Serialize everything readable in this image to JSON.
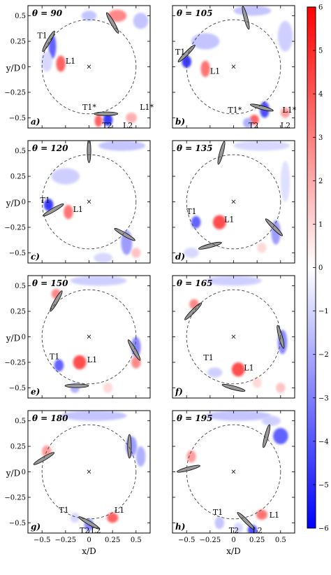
{
  "chart_data": {
    "type": "heatmap",
    "xlabel": "x/D",
    "ylabel": "y/D",
    "xlim": [
      -0.65,
      0.65
    ],
    "ylim": [
      -0.6,
      0.6
    ],
    "x_ticks": [
      "−0.5",
      "−0.25",
      "0",
      "0.25",
      "0.5"
    ],
    "y_ticks": [
      "0.5",
      "0.25",
      "0",
      "−0.25",
      "−0.5"
    ],
    "x_tick_values": [
      -0.5,
      -0.25,
      0,
      0.25,
      0.5
    ],
    "y_tick_values": [
      0.5,
      0.25,
      0,
      -0.25,
      -0.5
    ],
    "colorbar": {
      "min": -6,
      "max": 6,
      "ticks": [
        "6",
        "5",
        "4",
        "3",
        "2",
        "1",
        "0",
        "−1",
        "−2",
        "−3",
        "−4",
        "−5",
        "−6"
      ],
      "tick_values": [
        6,
        5,
        4,
        3,
        2,
        1,
        0,
        -1,
        -2,
        -3,
        -4,
        -5,
        -6
      ],
      "colors": {
        "low": "#0000ff",
        "mid": "#ffffff",
        "high": "#ff0000"
      }
    },
    "circle_radius": 0.5,
    "panels": [
      {
        "id": "a",
        "letter": "a)",
        "theta": "θ = 90",
        "blades": [
          {
            "x": 0.18,
            "y": -0.46,
            "angle": 0
          },
          {
            "x": -0.43,
            "y": 0.25,
            "angle": 120
          },
          {
            "x": 0.25,
            "y": 0.43,
            "angle": 240
          }
        ],
        "blobs": [
          {
            "x": -0.3,
            "y": 0.03,
            "rx": 0.05,
            "ry": 0.08,
            "v": 4
          },
          {
            "x": -0.39,
            "y": 0.2,
            "rx": 0.04,
            "ry": 0.12,
            "v": -4
          },
          {
            "x": 0.2,
            "y": -0.52,
            "rx": 0.05,
            "ry": 0.06,
            "v": -5
          },
          {
            "x": 0.1,
            "y": -0.53,
            "rx": 0.04,
            "ry": 0.06,
            "v": 4
          },
          {
            "x": 0.45,
            "y": -0.5,
            "rx": 0.06,
            "ry": 0.05,
            "v": 2
          },
          {
            "x": 0.3,
            "y": 0.5,
            "rx": 0.1,
            "ry": 0.06,
            "v": 3
          },
          {
            "x": 0.0,
            "y": 0.5,
            "rx": 0.08,
            "ry": 0.05,
            "v": -1.5
          },
          {
            "x": 0.55,
            "y": 0.45,
            "rx": 0.08,
            "ry": 0.08,
            "v": -1.5
          },
          {
            "x": -0.45,
            "y": 0.05,
            "rx": 0.06,
            "ry": 0.1,
            "v": -1
          }
        ],
        "labels": [
          {
            "text": "T1",
            "x": -0.55,
            "y": 0.28
          },
          {
            "text": "L1",
            "x": -0.25,
            "y": 0.03
          },
          {
            "text": "T1*",
            "x": -0.07,
            "y": -0.42
          },
          {
            "text": "L1*",
            "x": 0.54,
            "y": -0.42
          },
          {
            "text": "T2",
            "x": 0.14,
            "y": -0.6
          },
          {
            "text": "L2",
            "x": 0.36,
            "y": -0.6
          }
        ]
      },
      {
        "id": "b",
        "letter": "b)",
        "theta": "θ = 105",
        "blades": [
          {
            "x": 0.3,
            "y": -0.4,
            "angle": 15
          },
          {
            "x": -0.5,
            "y": 0.13,
            "angle": 135
          },
          {
            "x": 0.13,
            "y": 0.48,
            "angle": 255
          }
        ],
        "blobs": [
          {
            "x": -0.5,
            "y": 0.05,
            "rx": 0.05,
            "ry": 0.06,
            "v": -5
          },
          {
            "x": -0.3,
            "y": -0.02,
            "rx": 0.05,
            "ry": 0.08,
            "v": 3.5
          },
          {
            "x": 0.33,
            "y": -0.42,
            "rx": 0.05,
            "ry": 0.08,
            "v": -4.5
          },
          {
            "x": 0.22,
            "y": -0.52,
            "rx": 0.05,
            "ry": 0.05,
            "v": 4
          },
          {
            "x": 0.15,
            "y": -0.55,
            "rx": 0.05,
            "ry": 0.05,
            "v": -2
          },
          {
            "x": -0.3,
            "y": 0.25,
            "rx": 0.15,
            "ry": 0.08,
            "v": -1.5
          },
          {
            "x": 0.2,
            "y": 0.55,
            "rx": 0.2,
            "ry": 0.05,
            "v": -1.5
          },
          {
            "x": 0.55,
            "y": 0.3,
            "rx": 0.08,
            "ry": 0.15,
            "v": -1.2
          },
          {
            "x": 0.55,
            "y": -0.45,
            "rx": 0.05,
            "ry": 0.05,
            "v": 2.5
          }
        ],
        "labels": [
          {
            "text": "T1",
            "x": -0.62,
            "y": 0.12
          },
          {
            "text": "L1",
            "x": -0.25,
            "y": -0.07
          },
          {
            "text": "T1*",
            "x": -0.06,
            "y": -0.45
          },
          {
            "text": "L1*",
            "x": 0.52,
            "y": -0.45
          },
          {
            "text": "T2",
            "x": 0.16,
            "y": -0.6
          },
          {
            "text": "L2",
            "x": 0.5,
            "y": -0.6
          }
        ]
      },
      {
        "id": "c",
        "letter": "c)",
        "theta": "θ = 120",
        "blades": [
          {
            "x": 0.38,
            "y": -0.32,
            "angle": 30
          },
          {
            "x": -0.38,
            "y": -0.08,
            "angle": 150
          },
          {
            "x": 0.0,
            "y": 0.5,
            "angle": 270
          }
        ],
        "blobs": [
          {
            "x": -0.43,
            "y": -0.03,
            "rx": 0.05,
            "ry": 0.06,
            "v": -5
          },
          {
            "x": -0.22,
            "y": -0.1,
            "rx": 0.05,
            "ry": 0.07,
            "v": 3.5
          },
          {
            "x": 0.4,
            "y": -0.4,
            "rx": 0.06,
            "ry": 0.12,
            "v": -2.5
          },
          {
            "x": -0.25,
            "y": 0.25,
            "rx": 0.15,
            "ry": 0.08,
            "v": -1.2
          },
          {
            "x": 0.35,
            "y": 0.55,
            "rx": 0.25,
            "ry": 0.05,
            "v": -1.5
          },
          {
            "x": 0.15,
            "y": -0.55,
            "rx": 0.1,
            "ry": 0.05,
            "v": -1
          },
          {
            "x": 0.5,
            "y": -0.5,
            "rx": 0.05,
            "ry": 0.05,
            "v": 1.5
          }
        ],
        "labels": [
          {
            "text": "T1",
            "x": -0.52,
            "y": -0.01
          },
          {
            "text": "L1",
            "x": -0.17,
            "y": -0.1
          }
        ]
      },
      {
        "id": "d",
        "letter": "d)",
        "theta": "θ = 135",
        "blades": [
          {
            "x": 0.43,
            "y": -0.25,
            "angle": 45
          },
          {
            "x": -0.25,
            "y": -0.43,
            "angle": 165
          },
          {
            "x": -0.13,
            "y": 0.48,
            "angle": 285
          }
        ],
        "blobs": [
          {
            "x": -0.4,
            "y": -0.2,
            "rx": 0.05,
            "ry": 0.06,
            "v": -4
          },
          {
            "x": -0.15,
            "y": -0.2,
            "rx": 0.07,
            "ry": 0.07,
            "v": 4.5
          },
          {
            "x": 0.45,
            "y": -0.3,
            "rx": 0.05,
            "ry": 0.12,
            "v": -2.5
          },
          {
            "x": 0.3,
            "y": 0.55,
            "rx": 0.3,
            "ry": 0.05,
            "v": -1
          },
          {
            "x": -0.45,
            "y": -0.5,
            "rx": 0.08,
            "ry": 0.05,
            "v": -1
          },
          {
            "x": 0.55,
            "y": 0.2,
            "rx": 0.05,
            "ry": 0.2,
            "v": -0.8
          },
          {
            "x": 0.3,
            "y": -0.45,
            "rx": 0.05,
            "ry": 0.05,
            "v": 1
          }
        ],
        "labels": [
          {
            "text": "T1",
            "x": -0.5,
            "y": -0.12
          },
          {
            "text": "L1",
            "x": -0.1,
            "y": -0.2
          }
        ]
      },
      {
        "id": "e",
        "letter": "e)",
        "theta": "θ = 150",
        "blades": [
          {
            "x": 0.48,
            "y": -0.13,
            "angle": 60
          },
          {
            "x": -0.13,
            "y": -0.48,
            "angle": 180
          },
          {
            "x": -0.35,
            "y": 0.35,
            "angle": 300
          }
        ],
        "blobs": [
          {
            "x": -0.32,
            "y": -0.28,
            "rx": 0.05,
            "ry": 0.06,
            "v": -4
          },
          {
            "x": -0.1,
            "y": -0.25,
            "rx": 0.07,
            "ry": 0.07,
            "v": 4.5
          },
          {
            "x": 0.5,
            "y": -0.1,
            "rx": 0.05,
            "ry": 0.1,
            "v": -3
          },
          {
            "x": 0.5,
            "y": -0.25,
            "rx": 0.05,
            "ry": 0.06,
            "v": 3
          },
          {
            "x": -0.35,
            "y": 0.42,
            "rx": 0.05,
            "ry": 0.05,
            "v": 3
          },
          {
            "x": 0.1,
            "y": 0.55,
            "rx": 0.3,
            "ry": 0.05,
            "v": -1.2
          },
          {
            "x": -0.15,
            "y": -0.5,
            "rx": 0.05,
            "ry": 0.05,
            "v": -2
          },
          {
            "x": 0.2,
            "y": -0.5,
            "rx": 0.05,
            "ry": 0.05,
            "v": 1
          }
        ],
        "labels": [
          {
            "text": "T1",
            "x": -0.42,
            "y": -0.22
          },
          {
            "text": "L1",
            "x": -0.02,
            "y": -0.25
          }
        ]
      },
      {
        "id": "f",
        "letter": "f)",
        "theta": "θ = 165",
        "blades": [
          {
            "x": 0.5,
            "y": 0.0,
            "angle": 75
          },
          {
            "x": 0.0,
            "y": -0.5,
            "angle": 195
          },
          {
            "x": -0.43,
            "y": 0.25,
            "angle": 315
          }
        ],
        "blobs": [
          {
            "x": 0.05,
            "y": -0.32,
            "rx": 0.07,
            "ry": 0.07,
            "v": 4.5
          },
          {
            "x": 0.52,
            "y": -0.05,
            "rx": 0.05,
            "ry": 0.12,
            "v": -3
          },
          {
            "x": -0.42,
            "y": 0.32,
            "rx": 0.05,
            "ry": 0.05,
            "v": 3
          },
          {
            "x": -0.2,
            "y": -0.35,
            "rx": 0.08,
            "ry": 0.05,
            "v": -1.2
          },
          {
            "x": 0.0,
            "y": 0.55,
            "rx": 0.3,
            "ry": 0.05,
            "v": -1.2
          },
          {
            "x": 0.5,
            "y": -0.5,
            "rx": 0.05,
            "ry": 0.05,
            "v": 1.5
          },
          {
            "x": 0.25,
            "y": -0.45,
            "rx": 0.05,
            "ry": 0.05,
            "v": 1
          }
        ],
        "labels": [
          {
            "text": "T1",
            "x": -0.32,
            "y": -0.23
          },
          {
            "text": "L1",
            "x": 0.11,
            "y": -0.33
          }
        ]
      },
      {
        "id": "g",
        "letter": "g)",
        "theta": "θ = 180",
        "blades": [
          {
            "x": 0.43,
            "y": 0.25,
            "angle": 90
          },
          {
            "x": 0.0,
            "y": -0.5,
            "angle": 210
          },
          {
            "x": -0.48,
            "y": 0.13,
            "angle": 330
          }
        ],
        "blobs": [
          {
            "x": 0.25,
            "y": -0.45,
            "rx": 0.06,
            "ry": 0.05,
            "v": 4
          },
          {
            "x": 0.0,
            "y": -0.52,
            "rx": 0.05,
            "ry": 0.06,
            "v": -3
          },
          {
            "x": 0.45,
            "y": 0.25,
            "rx": 0.06,
            "ry": 0.1,
            "v": -2.5
          },
          {
            "x": -0.45,
            "y": 0.2,
            "rx": 0.05,
            "ry": 0.06,
            "v": 2.5
          },
          {
            "x": 0.05,
            "y": 0.55,
            "rx": 0.35,
            "ry": 0.05,
            "v": -1.5
          },
          {
            "x": 0.55,
            "y": 0.15,
            "rx": 0.05,
            "ry": 0.1,
            "v": -2
          },
          {
            "x": -0.15,
            "y": -0.45,
            "rx": 0.05,
            "ry": 0.05,
            "v": -1
          }
        ],
        "labels": [
          {
            "text": "T1",
            "x": -0.32,
            "y": -0.4
          },
          {
            "text": "L1",
            "x": 0.27,
            "y": -0.4
          },
          {
            "text": "T2",
            "x": -0.1,
            "y": -0.6
          },
          {
            "text": "L2",
            "x": 0.02,
            "y": -0.6
          }
        ]
      },
      {
        "id": "h",
        "letter": "h)",
        "theta": "θ = 195",
        "blades": [
          {
            "x": 0.35,
            "y": 0.35,
            "angle": 105
          },
          {
            "x": 0.13,
            "y": -0.48,
            "angle": 225
          },
          {
            "x": -0.48,
            "y": 0.03,
            "angle": 345
          }
        ],
        "blobs": [
          {
            "x": 0.3,
            "y": -0.42,
            "rx": 0.06,
            "ry": 0.05,
            "v": 3.5
          },
          {
            "x": 0.2,
            "y": -0.57,
            "rx": 0.05,
            "ry": 0.05,
            "v": -4.5
          },
          {
            "x": 0.5,
            "y": 0.35,
            "rx": 0.08,
            "ry": 0.08,
            "v": -4
          },
          {
            "x": -0.45,
            "y": 0.15,
            "rx": 0.05,
            "ry": 0.06,
            "v": 2.5
          },
          {
            "x": 0.05,
            "y": 0.55,
            "rx": 0.35,
            "ry": 0.05,
            "v": -1.5
          },
          {
            "x": -0.15,
            "y": -0.5,
            "rx": 0.05,
            "ry": 0.06,
            "v": -1.5
          },
          {
            "x": 0.05,
            "y": -0.55,
            "rx": 0.05,
            "ry": 0.05,
            "v": -1
          },
          {
            "x": 0.4,
            "y": 0.5,
            "rx": 0.1,
            "ry": 0.05,
            "v": -1.2
          }
        ],
        "labels": [
          {
            "text": "T1",
            "x": -0.22,
            "y": -0.42
          },
          {
            "text": "L1",
            "x": 0.38,
            "y": -0.45
          },
          {
            "text": "T2",
            "x": -0.05,
            "y": -0.6
          },
          {
            "text": "L2",
            "x": 0.2,
            "y": -0.6
          }
        ]
      }
    ]
  }
}
